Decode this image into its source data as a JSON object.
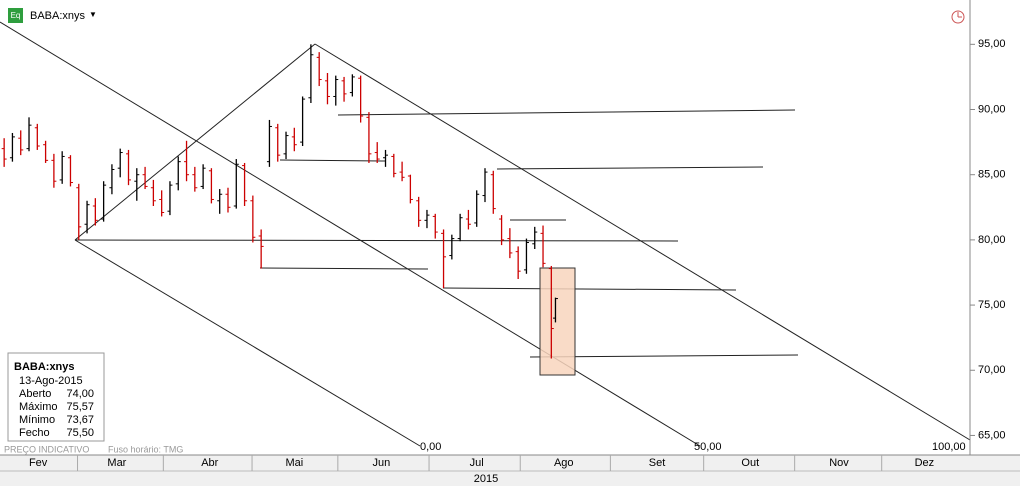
{
  "header": {
    "icon": "Eq",
    "ticker": "BABA:xnys",
    "dropdown": "▼"
  },
  "footer": {
    "note": "PREÇO INDICATIVO",
    "timezone": "Fuso horário: TMG"
  },
  "info": {
    "title": "BABA:xnys",
    "date": "13-Ago-2015",
    "rows": [
      [
        "Aberto",
        "74,00"
      ],
      [
        "Máximo",
        "75,57"
      ],
      [
        "Mínimo",
        "73,67"
      ],
      [
        "Fecho",
        "75,50"
      ]
    ]
  },
  "chart_data": {
    "type": "ohlc",
    "up_color": "#000000",
    "down_color": "#cc0000",
    "ylim": [
      63.5,
      98.4
    ],
    "xlim": [
      -1,
      233
    ],
    "yticks": [
      {
        "value": 65,
        "label": "65,00"
      },
      {
        "value": 70,
        "label": "70,00"
      },
      {
        "value": 75,
        "label": "75,00"
      },
      {
        "value": 80,
        "label": "80,00"
      },
      {
        "value": 85,
        "label": "85,00"
      },
      {
        "value": 90,
        "label": "90,00"
      },
      {
        "value": 95,
        "label": "95,00"
      }
    ],
    "xticks": [
      {
        "value": 8.2,
        "label": "Fev"
      },
      {
        "value": 27.2,
        "label": "Mar"
      },
      {
        "value": 49.6,
        "label": "Abr"
      },
      {
        "value": 70,
        "label": "Mai"
      },
      {
        "value": 91,
        "label": "Jun"
      },
      {
        "value": 114,
        "label": "Jul"
      },
      {
        "value": 135,
        "label": "Ago"
      },
      {
        "value": 157.5,
        "label": "Set"
      },
      {
        "value": 180,
        "label": "Out"
      },
      {
        "value": 201.4,
        "label": "Nov"
      },
      {
        "value": 222,
        "label": "Dez"
      }
    ],
    "year": "2015",
    "annotations": [
      "0,00",
      "50,00",
      "100,00"
    ],
    "x": [
      0,
      2,
      4,
      6,
      8,
      10,
      12,
      14,
      16,
      18,
      20,
      22,
      24,
      26,
      28,
      30,
      32,
      34,
      36,
      38,
      40,
      42,
      44,
      46,
      48,
      50,
      52,
      54,
      56,
      58,
      60,
      62,
      64,
      66,
      68,
      70,
      72,
      74,
      76,
      78,
      80,
      82,
      84,
      86,
      88,
      90,
      92,
      94,
      96,
      98,
      100,
      102,
      104,
      106,
      108,
      110,
      112,
      114,
      116,
      118,
      120,
      122,
      124,
      126,
      128,
      130,
      132,
      133
    ],
    "open": [
      87.0,
      86.3,
      87.8,
      87.0,
      88.6,
      87.3,
      86.1,
      84.6,
      86.3,
      84.0,
      81.2,
      82.6,
      81.6,
      84.0,
      85.5,
      86.6,
      84.5,
      85.0,
      84.0,
      83.1,
      82.2,
      84.3,
      86.0,
      85.0,
      84.1,
      85.3,
      83.0,
      83.5,
      82.6,
      85.7,
      83.0,
      80.3,
      86.0,
      88.6,
      86.6,
      87.9,
      87.5,
      90.9,
      94.0,
      92.2,
      91.0,
      92.2,
      91.3,
      92.4,
      89.4,
      86.7,
      86.3,
      86.4,
      85.2,
      84.9,
      83.0,
      81.5,
      81.8,
      80.5,
      78.8,
      80.1,
      81.6,
      81.3,
      83.4,
      85.0,
      81.6,
      80.1,
      79.1,
      77.7,
      79.7,
      80.5,
      77.8,
      74.0
    ],
    "high": [
      87.8,
      88.2,
      88.4,
      89.4,
      88.9,
      87.6,
      86.6,
      86.8,
      86.5,
      84.3,
      83.0,
      83.2,
      84.5,
      85.8,
      87.0,
      86.9,
      85.5,
      85.6,
      84.6,
      83.8,
      84.5,
      86.4,
      87.6,
      85.6,
      85.8,
      85.5,
      83.9,
      84.0,
      86.2,
      85.9,
      83.4,
      80.8,
      89.2,
      88.9,
      88.3,
      88.6,
      91.0,
      95.0,
      94.4,
      92.8,
      92.6,
      92.5,
      92.7,
      92.6,
      89.8,
      87.5,
      86.9,
      86.6,
      86.0,
      85.0,
      83.3,
      82.3,
      82.0,
      80.8,
      80.4,
      82.0,
      82.3,
      83.8,
      85.5,
      85.3,
      81.9,
      80.9,
      79.5,
      80.1,
      81.0,
      81.1,
      78.0,
      75.57
    ],
    "low": [
      85.6,
      86.0,
      86.5,
      86.8,
      86.9,
      85.9,
      84.0,
      84.3,
      84.1,
      80.0,
      80.5,
      81.1,
      81.4,
      83.5,
      84.8,
      84.2,
      83.0,
      83.9,
      82.6,
      81.8,
      81.9,
      83.8,
      84.5,
      83.7,
      83.9,
      82.8,
      82.0,
      82.1,
      82.4,
      82.6,
      79.8,
      77.8,
      85.6,
      86.0,
      86.2,
      86.8,
      87.2,
      90.5,
      91.8,
      90.4,
      90.3,
      90.6,
      91.0,
      89.0,
      85.9,
      85.9,
      85.6,
      84.8,
      84.5,
      82.8,
      81.0,
      80.9,
      80.1,
      76.3,
      78.5,
      79.9,
      80.8,
      81.0,
      82.9,
      82.0,
      79.6,
      78.6,
      77.0,
      77.4,
      79.3,
      77.9,
      70.9,
      73.67
    ],
    "close": [
      86.2,
      87.9,
      86.9,
      88.8,
      87.2,
      86.1,
      84.5,
      86.4,
      84.4,
      81.0,
      82.7,
      81.5,
      84.2,
      85.4,
      86.7,
      84.6,
      85.0,
      84.1,
      83.0,
      82.1,
      84.2,
      86.0,
      85.0,
      84.0,
      85.5,
      83.1,
      83.5,
      82.5,
      85.8,
      83.0,
      80.2,
      79.5,
      88.7,
      86.5,
      88.0,
      87.3,
      90.8,
      94.2,
      92.3,
      91.0,
      92.3,
      91.2,
      92.5,
      89.5,
      86.6,
      86.2,
      86.5,
      85.1,
      84.8,
      83.1,
      81.5,
      81.9,
      80.6,
      78.7,
      80.1,
      81.7,
      81.2,
      83.5,
      85.2,
      82.4,
      80.0,
      79.0,
      77.6,
      79.8,
      80.6,
      78.2,
      73.2,
      75.5
    ]
  }
}
